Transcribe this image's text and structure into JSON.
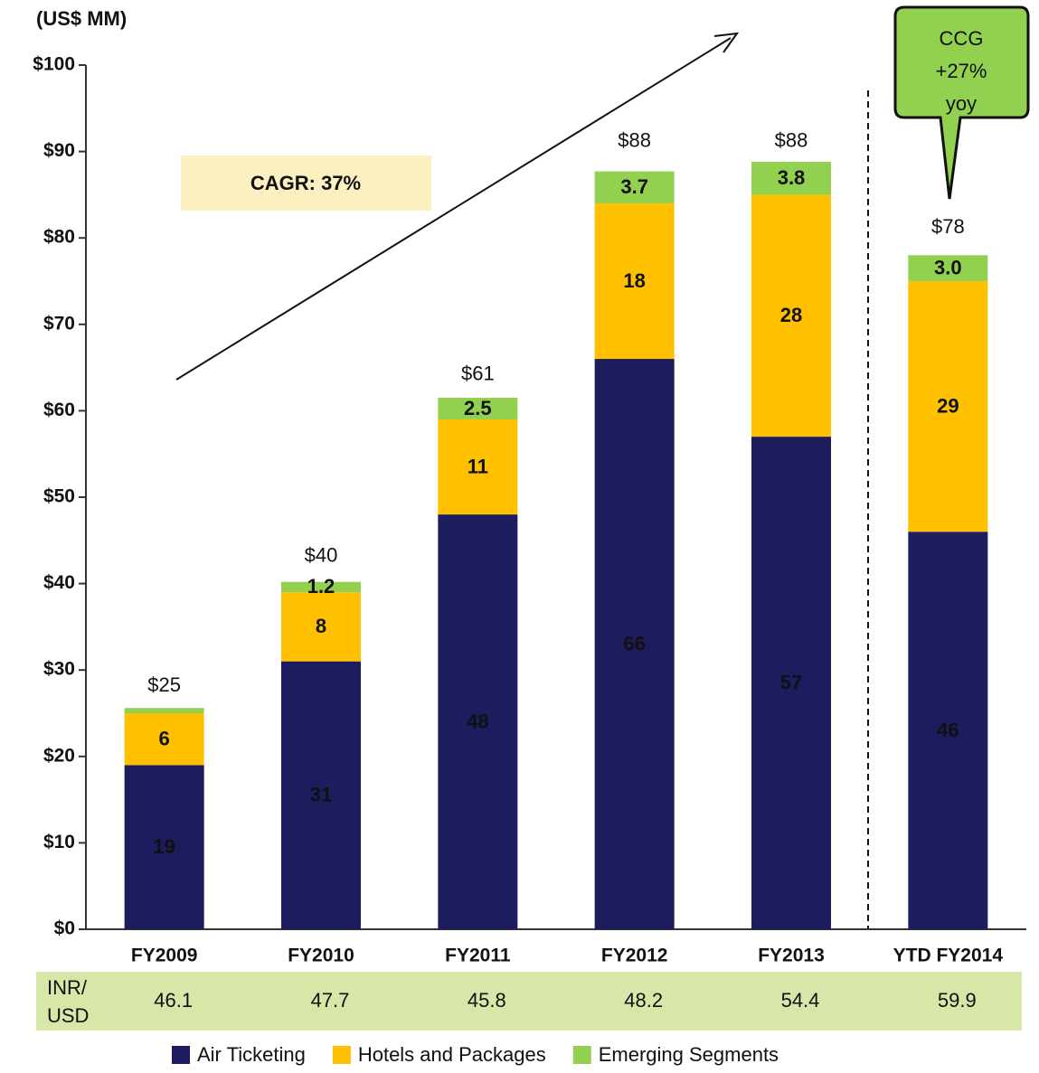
{
  "chart_data": {
    "type": "stacked-bar",
    "y_label": "(US$ MM)",
    "categories": [
      "FY2009",
      "FY2010",
      "FY2011",
      "FY2012",
      "FY2013",
      "YTD FY2014"
    ],
    "series": [
      {
        "name": "Air Ticketing",
        "color": "#1c1c5e",
        "values": [
          19,
          31,
          48,
          66,
          57,
          46
        ]
      },
      {
        "name": "Hotels and Packages",
        "color": "#ffc000",
        "values": [
          6,
          8,
          11,
          18,
          28,
          29
        ]
      },
      {
        "name": "Emerging Segments",
        "color": "#92d050",
        "values": [
          0.6,
          1.2,
          2.5,
          3.7,
          3.8,
          3.0
        ],
        "value_labels": [
          null,
          "1.2",
          "2.5",
          "3.7",
          "3.8",
          "3.0"
        ]
      }
    ],
    "totals": {
      "values": [
        25,
        40,
        61,
        88,
        88,
        78
      ],
      "value_labels": [
        "$25",
        "$40",
        "$61",
        "$88",
        "$88",
        "$78"
      ]
    },
    "ylim": [
      0,
      100
    ],
    "yticks": [
      {
        "value": 0,
        "label": "$0"
      },
      {
        "value": 10,
        "label": "$10"
      },
      {
        "value": 20,
        "label": "$20"
      },
      {
        "value": 30,
        "label": "$30"
      },
      {
        "value": 40,
        "label": "$40"
      },
      {
        "value": 50,
        "label": "$50"
      },
      {
        "value": 60,
        "label": "$60"
      },
      {
        "value": 70,
        "label": "$70"
      },
      {
        "value": 80,
        "label": "$80"
      },
      {
        "value": 90,
        "label": "$90"
      },
      {
        "value": 100,
        "label": "$100"
      }
    ],
    "annotations": [
      "CAGR: 37%",
      "CCG",
      "+27%",
      "yoy"
    ],
    "fx_row": {
      "label": [
        "INR/",
        "USD"
      ],
      "values": [
        46.1,
        47.7,
        45.8,
        48.2,
        54.4,
        59.9
      ]
    },
    "legend": "bottom"
  }
}
